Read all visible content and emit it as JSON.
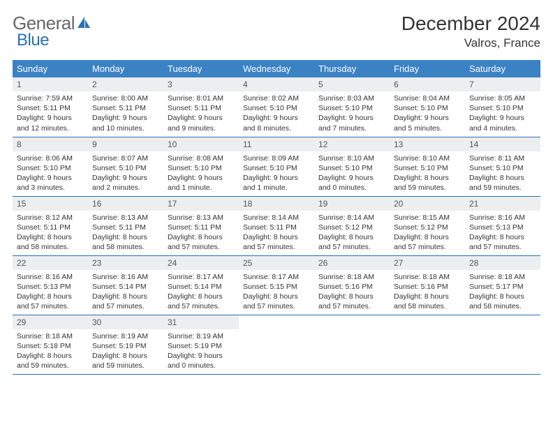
{
  "logo": {
    "part1": "General",
    "part2": "Blue"
  },
  "title": "December 2024",
  "location": "Valros, France",
  "header_bg": "#3b82c4",
  "border_color": "#2a6fb5",
  "daynum_bg": "#eceef0",
  "weekdays": [
    "Sunday",
    "Monday",
    "Tuesday",
    "Wednesday",
    "Thursday",
    "Friday",
    "Saturday"
  ],
  "days": [
    {
      "n": "1",
      "sr": "7:59 AM",
      "ss": "5:11 PM",
      "dl": "9 hours and 12 minutes."
    },
    {
      "n": "2",
      "sr": "8:00 AM",
      "ss": "5:11 PM",
      "dl": "9 hours and 10 minutes."
    },
    {
      "n": "3",
      "sr": "8:01 AM",
      "ss": "5:11 PM",
      "dl": "9 hours and 9 minutes."
    },
    {
      "n": "4",
      "sr": "8:02 AM",
      "ss": "5:10 PM",
      "dl": "9 hours and 8 minutes."
    },
    {
      "n": "5",
      "sr": "8:03 AM",
      "ss": "5:10 PM",
      "dl": "9 hours and 7 minutes."
    },
    {
      "n": "6",
      "sr": "8:04 AM",
      "ss": "5:10 PM",
      "dl": "9 hours and 5 minutes."
    },
    {
      "n": "7",
      "sr": "8:05 AM",
      "ss": "5:10 PM",
      "dl": "9 hours and 4 minutes."
    },
    {
      "n": "8",
      "sr": "8:06 AM",
      "ss": "5:10 PM",
      "dl": "9 hours and 3 minutes."
    },
    {
      "n": "9",
      "sr": "8:07 AM",
      "ss": "5:10 PM",
      "dl": "9 hours and 2 minutes."
    },
    {
      "n": "10",
      "sr": "8:08 AM",
      "ss": "5:10 PM",
      "dl": "9 hours and 1 minute."
    },
    {
      "n": "11",
      "sr": "8:09 AM",
      "ss": "5:10 PM",
      "dl": "9 hours and 1 minute."
    },
    {
      "n": "12",
      "sr": "8:10 AM",
      "ss": "5:10 PM",
      "dl": "9 hours and 0 minutes."
    },
    {
      "n": "13",
      "sr": "8:10 AM",
      "ss": "5:10 PM",
      "dl": "8 hours and 59 minutes."
    },
    {
      "n": "14",
      "sr": "8:11 AM",
      "ss": "5:10 PM",
      "dl": "8 hours and 59 minutes."
    },
    {
      "n": "15",
      "sr": "8:12 AM",
      "ss": "5:11 PM",
      "dl": "8 hours and 58 minutes."
    },
    {
      "n": "16",
      "sr": "8:13 AM",
      "ss": "5:11 PM",
      "dl": "8 hours and 58 minutes."
    },
    {
      "n": "17",
      "sr": "8:13 AM",
      "ss": "5:11 PM",
      "dl": "8 hours and 57 minutes."
    },
    {
      "n": "18",
      "sr": "8:14 AM",
      "ss": "5:11 PM",
      "dl": "8 hours and 57 minutes."
    },
    {
      "n": "19",
      "sr": "8:14 AM",
      "ss": "5:12 PM",
      "dl": "8 hours and 57 minutes."
    },
    {
      "n": "20",
      "sr": "8:15 AM",
      "ss": "5:12 PM",
      "dl": "8 hours and 57 minutes."
    },
    {
      "n": "21",
      "sr": "8:16 AM",
      "ss": "5:13 PM",
      "dl": "8 hours and 57 minutes."
    },
    {
      "n": "22",
      "sr": "8:16 AM",
      "ss": "5:13 PM",
      "dl": "8 hours and 57 minutes."
    },
    {
      "n": "23",
      "sr": "8:16 AM",
      "ss": "5:14 PM",
      "dl": "8 hours and 57 minutes."
    },
    {
      "n": "24",
      "sr": "8:17 AM",
      "ss": "5:14 PM",
      "dl": "8 hours and 57 minutes."
    },
    {
      "n": "25",
      "sr": "8:17 AM",
      "ss": "5:15 PM",
      "dl": "8 hours and 57 minutes."
    },
    {
      "n": "26",
      "sr": "8:18 AM",
      "ss": "5:16 PM",
      "dl": "8 hours and 57 minutes."
    },
    {
      "n": "27",
      "sr": "8:18 AM",
      "ss": "5:16 PM",
      "dl": "8 hours and 58 minutes."
    },
    {
      "n": "28",
      "sr": "8:18 AM",
      "ss": "5:17 PM",
      "dl": "8 hours and 58 minutes."
    },
    {
      "n": "29",
      "sr": "8:18 AM",
      "ss": "5:18 PM",
      "dl": "8 hours and 59 minutes."
    },
    {
      "n": "30",
      "sr": "8:19 AM",
      "ss": "5:19 PM",
      "dl": "8 hours and 59 minutes."
    },
    {
      "n": "31",
      "sr": "8:19 AM",
      "ss": "5:19 PM",
      "dl": "9 hours and 0 minutes."
    }
  ],
  "labels": {
    "sunrise": "Sunrise:",
    "sunset": "Sunset:",
    "daylight": "Daylight:"
  }
}
